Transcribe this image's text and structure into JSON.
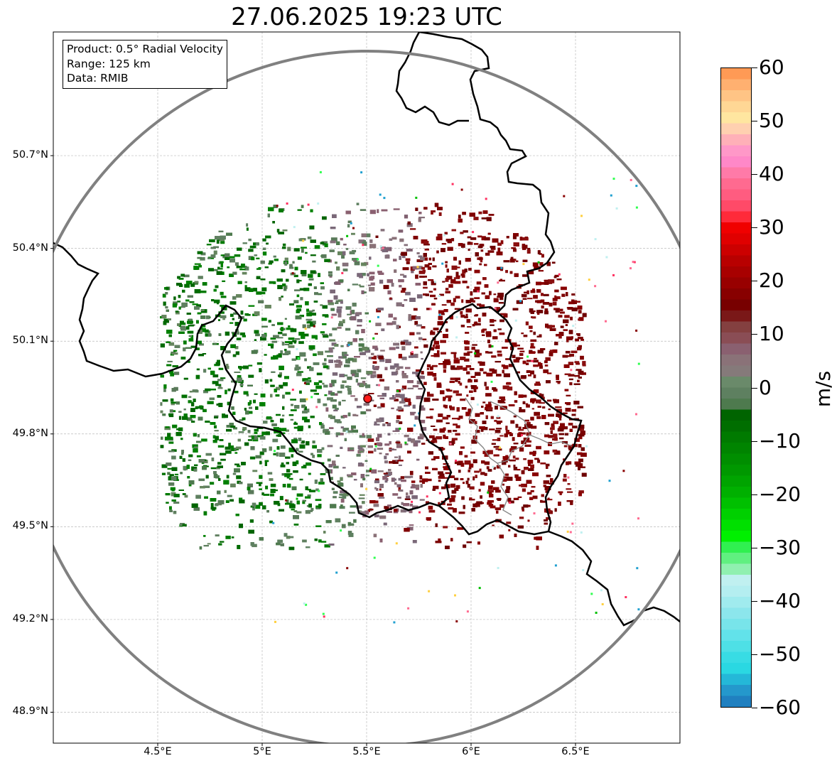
{
  "title": "27.06.2025 19:23 UTC",
  "info": {
    "product": "Product: 0.5° Radial Velocity",
    "range": "Range: 125 km",
    "data": "Data: RMIB"
  },
  "map": {
    "lon_range": [
      4.0,
      7.0
    ],
    "lat_range": [
      48.8,
      51.1
    ],
    "lon_ticks": [
      "4.5°E",
      "5°E",
      "5.5°E",
      "6°E",
      "6.5°E"
    ],
    "lon_tick_values": [
      4.5,
      5.0,
      5.5,
      6.0,
      6.5
    ],
    "lat_ticks": [
      "50.7°N",
      "50.4°N",
      "50.1°N",
      "49.8°N",
      "49.5°N",
      "49.2°N",
      "48.9°N"
    ],
    "lat_tick_values": [
      50.7,
      50.4,
      50.1,
      49.8,
      49.5,
      49.2,
      48.9
    ],
    "radar_site": {
      "lon": 5.505,
      "lat": 49.914
    },
    "range_km": 125,
    "grid": true
  },
  "colorbar": {
    "unit": "m/s",
    "min": -60,
    "max": 60,
    "tick_labels": [
      "60",
      "50",
      "40",
      "30",
      "20",
      "10",
      "0",
      "−10",
      "−20",
      "−30",
      "−40",
      "−50",
      "−60"
    ],
    "tick_values": [
      60,
      50,
      40,
      30,
      20,
      10,
      0,
      -10,
      -20,
      -30,
      -40,
      -50,
      -60
    ],
    "colors_top_to_bottom": [
      "#ff9a55",
      "#ffb070",
      "#ffc485",
      "#ffd795",
      "#ffe6a0",
      "#ffd0b0",
      "#ffb0b8",
      "#ff98c8",
      "#ff88c8",
      "#ff7aa8",
      "#ff6a90",
      "#ff5c80",
      "#ff4a68",
      "#ff2a3a",
      "#f00000",
      "#e00000",
      "#cc0000",
      "#b80000",
      "#a80000",
      "#980000",
      "#880000",
      "#780000",
      "#7a1818",
      "#844040",
      "#8a4d55",
      "#8a6070",
      "#8a7278",
      "#857a7a",
      "#6a8a6a",
      "#5e8060",
      "#4e7a4e",
      "#006400",
      "#006e00",
      "#007a00",
      "#008400",
      "#008e00",
      "#009800",
      "#00a400",
      "#00b000",
      "#00c000",
      "#00d000",
      "#00e000",
      "#00f000",
      "#30f050",
      "#60f080",
      "#90f0b0",
      "#c0f0f0",
      "#b4eef0",
      "#a0ebee",
      "#8ce6ec",
      "#78e4ea",
      "#62e2ea",
      "#4ee0e6",
      "#38dce4",
      "#2ad8e2",
      "#24b8d8",
      "#2498cc",
      "#2080c0"
    ]
  }
}
